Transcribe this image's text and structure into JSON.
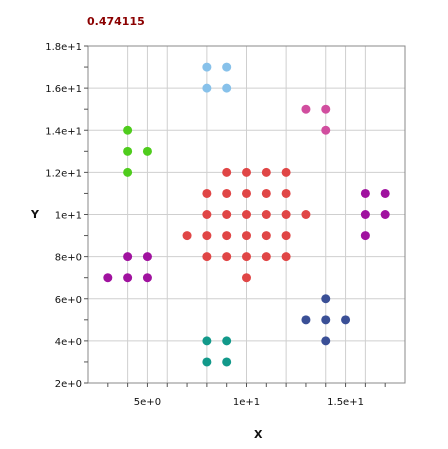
{
  "header": {
    "score": "0.474115"
  },
  "chart_data": {
    "type": "scatter",
    "title": "",
    "xlabel": "X",
    "ylabel": "Y",
    "xlim": [
      2,
      18
    ],
    "ylim": [
      2,
      18
    ],
    "grid": true,
    "legend": "none",
    "xticks": [
      {
        "value": 5,
        "label": "5e+0"
      },
      {
        "value": 10,
        "label": "1e+1"
      },
      {
        "value": 15,
        "label": "1.5e+1"
      }
    ],
    "yticks": [
      {
        "value": 2,
        "label": "2e+0"
      },
      {
        "value": 4,
        "label": "4e+0"
      },
      {
        "value": 6,
        "label": "6e+0"
      },
      {
        "value": 8,
        "label": "8e+0"
      },
      {
        "value": 10,
        "label": "1e+1"
      },
      {
        "value": 12,
        "label": "1.2e+1"
      },
      {
        "value": 14,
        "label": "1.4e+1"
      },
      {
        "value": 16,
        "label": "1.6e+1"
      },
      {
        "value": 18,
        "label": "1.8e+1"
      }
    ],
    "series": [
      {
        "color": "#87c1ea",
        "points": [
          [
            8,
            17
          ],
          [
            9,
            17
          ],
          [
            8,
            16
          ],
          [
            9,
            16
          ]
        ]
      },
      {
        "color": "#d14e9f",
        "points": [
          [
            13,
            15
          ],
          [
            14,
            15
          ],
          [
            14,
            14
          ]
        ]
      },
      {
        "color": "#4fcc1d",
        "points": [
          [
            4,
            14
          ],
          [
            4,
            13
          ],
          [
            5,
            13
          ],
          [
            4,
            12
          ]
        ]
      },
      {
        "color": "#e04646",
        "points": [
          [
            9,
            12
          ],
          [
            10,
            12
          ],
          [
            11,
            12
          ],
          [
            12,
            12
          ],
          [
            8,
            11
          ],
          [
            9,
            11
          ],
          [
            10,
            11
          ],
          [
            11,
            11
          ],
          [
            12,
            11
          ],
          [
            8,
            10
          ],
          [
            9,
            10
          ],
          [
            10,
            10
          ],
          [
            11,
            10
          ],
          [
            12,
            10
          ],
          [
            13,
            10
          ],
          [
            7,
            9
          ],
          [
            8,
            9
          ],
          [
            9,
            9
          ],
          [
            10,
            9
          ],
          [
            11,
            9
          ],
          [
            12,
            9
          ],
          [
            8,
            8
          ],
          [
            9,
            8
          ],
          [
            10,
            8
          ],
          [
            11,
            8
          ],
          [
            12,
            8
          ],
          [
            10,
            7
          ]
        ]
      },
      {
        "color": "#a0129f",
        "points": [
          [
            16,
            11
          ],
          [
            17,
            11
          ],
          [
            16,
            10
          ],
          [
            17,
            10
          ],
          [
            16,
            9
          ]
        ]
      },
      {
        "color": "#a0129f",
        "points": [
          [
            4,
            8
          ],
          [
            5,
            8
          ],
          [
            3,
            7
          ],
          [
            4,
            7
          ],
          [
            5,
            7
          ]
        ]
      },
      {
        "color": "#3a4f96",
        "points": [
          [
            14,
            6
          ],
          [
            13,
            5
          ],
          [
            14,
            5
          ],
          [
            15,
            5
          ],
          [
            14,
            4
          ]
        ]
      },
      {
        "color": "#12998a",
        "points": [
          [
            8,
            4
          ],
          [
            9,
            4
          ],
          [
            8,
            3
          ],
          [
            9,
            3
          ]
        ]
      }
    ]
  }
}
